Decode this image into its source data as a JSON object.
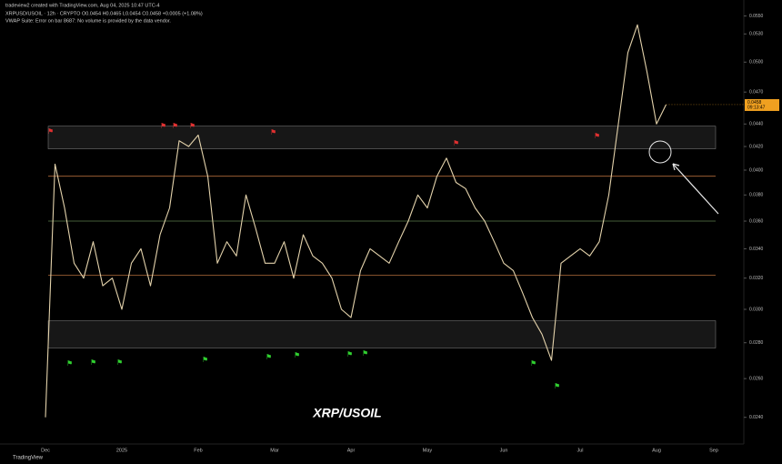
{
  "header": {
    "creator": "tradeview2 created with TradingView.com, Aug 04, 2025 10:47 UTC-4",
    "symbol_line": "XRPUSD/USOIL · 12h · CRYPTO  O0.0454  H0.0465  L0.0454  C0.0458  +0.0005 (+1.08%)",
    "indicator_line": "VWAP Suite: Error on bar 8687: No volume is provided by the data vendor."
  },
  "footer": {
    "brand": "TradingView"
  },
  "chart_data": {
    "type": "line",
    "annotation": "XRP/USOIL",
    "categories": [
      "Dec",
      null,
      null,
      null,
      null,
      null,
      null,
      null,
      "2025",
      null,
      null,
      null,
      null,
      null,
      null,
      null,
      "Feb",
      null,
      null,
      null,
      null,
      null,
      null,
      null,
      "Mar",
      null,
      null,
      null,
      null,
      null,
      null,
      null,
      "Apr",
      null,
      null,
      null,
      null,
      null,
      null,
      null,
      "May",
      null,
      null,
      null,
      null,
      null,
      null,
      null,
      "Jun",
      null,
      null,
      null,
      null,
      null,
      null,
      null,
      "Jul",
      null,
      null,
      null,
      null,
      null,
      null,
      null,
      "Aug",
      null,
      null,
      null,
      null,
      null,
      "Sep"
    ],
    "series": [
      {
        "name": "XRPUSD/USOIL",
        "color": "#e3d2ab",
        "values": [
          0.024,
          0.0405,
          0.037,
          0.033,
          0.032,
          0.0345,
          0.0315,
          0.032,
          0.03,
          0.033,
          0.034,
          0.0315,
          0.035,
          0.037,
          0.0425,
          0.042,
          0.043,
          0.0395,
          0.033,
          0.0345,
          0.0335,
          0.038,
          0.0355,
          0.033,
          0.033,
          0.0345,
          0.032,
          0.035,
          0.0335,
          0.033,
          0.032,
          0.03,
          0.0295,
          0.0325,
          0.034,
          0.0335,
          0.033,
          0.0345,
          0.036,
          0.038,
          0.037,
          0.0395,
          0.041,
          0.039,
          0.0385,
          0.037,
          0.036,
          0.0345,
          0.033,
          0.0325,
          0.031,
          0.0295,
          0.0285,
          0.027,
          0.033,
          0.0335,
          0.034,
          0.0335,
          0.0345,
          0.038,
          0.044,
          0.051,
          0.054,
          0.049,
          0.044,
          0.0458,
          null,
          null,
          null,
          null,
          null
        ]
      }
    ],
    "zones": [
      {
        "low": 0.0418,
        "high": 0.0438,
        "color": "#2a2a2a"
      },
      {
        "low": 0.0277,
        "high": 0.0293,
        "color": "#2a2a2a"
      }
    ],
    "levels": [
      {
        "value": 0.0395,
        "color": "#b06a3a"
      },
      {
        "value": 0.036,
        "color": "#5a7a4a"
      },
      {
        "value": 0.0322,
        "color": "#b06a3a"
      }
    ],
    "last_price_label": "0.0458",
    "countdown": "09:13:47",
    "last_price_color": "#f0a020",
    "log_scale": true,
    "ylim": [
      0.0228,
      0.056
    ],
    "yticks": [
      {
        "value": 0.055,
        "label": "0.0550"
      },
      {
        "value": 0.053,
        "label": "0.0530"
      },
      {
        "value": 0.05,
        "label": "0.0500"
      },
      {
        "value": 0.047,
        "label": "0.0470"
      },
      {
        "value": 0.044,
        "label": "0.0440"
      },
      {
        "value": 0.042,
        "label": "0.0420"
      },
      {
        "value": 0.04,
        "label": "0.0400"
      },
      {
        "value": 0.038,
        "label": "0.0380"
      },
      {
        "value": 0.036,
        "label": "0.0360"
      },
      {
        "value": 0.034,
        "label": "0.0340"
      },
      {
        "value": 0.032,
        "label": "0.0320"
      },
      {
        "value": 0.03,
        "label": "0.0300"
      },
      {
        "value": 0.028,
        "label": "0.0280"
      },
      {
        "value": 0.026,
        "label": "0.0260"
      },
      {
        "value": 0.024,
        "label": "0.0240"
      }
    ],
    "grid": false
  }
}
